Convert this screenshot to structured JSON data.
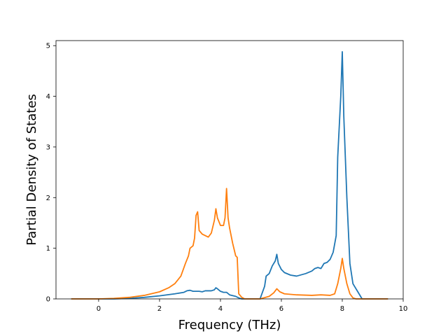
{
  "chart_data": {
    "type": "line",
    "title": "",
    "xlabel": "Frequency (THz)",
    "ylabel": "Partial Density of States",
    "xlim": [
      -1.4,
      10
    ],
    "ylim": [
      0,
      5.1
    ],
    "x_ticks": [
      0,
      2,
      4,
      6,
      8,
      10
    ],
    "y_ticks": [
      0,
      1,
      2,
      3,
      4,
      5
    ],
    "grid": false,
    "legend": "none",
    "series": [
      {
        "color": "#1f77b4",
        "points": [
          [
            -0.9,
            0
          ],
          [
            0.5,
            0
          ],
          [
            1.0,
            0.01
          ],
          [
            1.5,
            0.03
          ],
          [
            2.0,
            0.06
          ],
          [
            2.5,
            0.1
          ],
          [
            2.8,
            0.13
          ],
          [
            2.9,
            0.16
          ],
          [
            3.0,
            0.17
          ],
          [
            3.1,
            0.15
          ],
          [
            3.3,
            0.15
          ],
          [
            3.4,
            0.14
          ],
          [
            3.5,
            0.16
          ],
          [
            3.7,
            0.16
          ],
          [
            3.8,
            0.18
          ],
          [
            3.85,
            0.22
          ],
          [
            3.9,
            0.2
          ],
          [
            4.0,
            0.15
          ],
          [
            4.1,
            0.13
          ],
          [
            4.2,
            0.13
          ],
          [
            4.3,
            0.08
          ],
          [
            4.5,
            0.05
          ],
          [
            4.6,
            0.02
          ],
          [
            4.7,
            0
          ],
          [
            5.3,
            0
          ],
          [
            5.45,
            0.25
          ],
          [
            5.5,
            0.45
          ],
          [
            5.6,
            0.5
          ],
          [
            5.7,
            0.65
          ],
          [
            5.8,
            0.75
          ],
          [
            5.85,
            0.88
          ],
          [
            5.9,
            0.7
          ],
          [
            6.0,
            0.58
          ],
          [
            6.1,
            0.52
          ],
          [
            6.3,
            0.47
          ],
          [
            6.5,
            0.45
          ],
          [
            6.8,
            0.5
          ],
          [
            7.0,
            0.55
          ],
          [
            7.1,
            0.6
          ],
          [
            7.2,
            0.62
          ],
          [
            7.3,
            0.6
          ],
          [
            7.4,
            0.7
          ],
          [
            7.5,
            0.72
          ],
          [
            7.6,
            0.78
          ],
          [
            7.7,
            0.92
          ],
          [
            7.8,
            1.25
          ],
          [
            7.85,
            2.8
          ],
          [
            7.95,
            4.0
          ],
          [
            8.0,
            4.88
          ],
          [
            8.05,
            3.6
          ],
          [
            8.15,
            2.0
          ],
          [
            8.25,
            0.7
          ],
          [
            8.35,
            0.3
          ],
          [
            8.5,
            0.15
          ],
          [
            8.6,
            0.05
          ],
          [
            8.65,
            0
          ],
          [
            9.5,
            0
          ]
        ]
      },
      {
        "color": "#ff7f0e",
        "points": [
          [
            -0.9,
            0
          ],
          [
            0.0,
            0
          ],
          [
            0.5,
            0.01
          ],
          [
            1.0,
            0.03
          ],
          [
            1.5,
            0.07
          ],
          [
            2.0,
            0.14
          ],
          [
            2.3,
            0.22
          ],
          [
            2.5,
            0.3
          ],
          [
            2.7,
            0.45
          ],
          [
            2.85,
            0.7
          ],
          [
            2.95,
            0.85
          ],
          [
            3.0,
            1.0
          ],
          [
            3.1,
            1.05
          ],
          [
            3.15,
            1.2
          ],
          [
            3.2,
            1.65
          ],
          [
            3.25,
            1.72
          ],
          [
            3.3,
            1.35
          ],
          [
            3.4,
            1.28
          ],
          [
            3.5,
            1.25
          ],
          [
            3.6,
            1.22
          ],
          [
            3.7,
            1.3
          ],
          [
            3.8,
            1.55
          ],
          [
            3.85,
            1.78
          ],
          [
            3.9,
            1.6
          ],
          [
            4.0,
            1.45
          ],
          [
            4.1,
            1.45
          ],
          [
            4.15,
            1.6
          ],
          [
            4.2,
            2.18
          ],
          [
            4.25,
            1.6
          ],
          [
            4.3,
            1.4
          ],
          [
            4.4,
            1.1
          ],
          [
            4.5,
            0.85
          ],
          [
            4.55,
            0.82
          ],
          [
            4.6,
            0.1
          ],
          [
            4.7,
            0.03
          ],
          [
            4.8,
            0
          ],
          [
            5.3,
            0
          ],
          [
            5.6,
            0.05
          ],
          [
            5.75,
            0.12
          ],
          [
            5.85,
            0.2
          ],
          [
            5.95,
            0.14
          ],
          [
            6.1,
            0.1
          ],
          [
            6.5,
            0.08
          ],
          [
            7.0,
            0.07
          ],
          [
            7.3,
            0.08
          ],
          [
            7.6,
            0.07
          ],
          [
            7.75,
            0.1
          ],
          [
            7.85,
            0.3
          ],
          [
            7.95,
            0.6
          ],
          [
            8.0,
            0.8
          ],
          [
            8.05,
            0.6
          ],
          [
            8.15,
            0.3
          ],
          [
            8.25,
            0.1
          ],
          [
            8.35,
            0.02
          ],
          [
            8.45,
            0
          ],
          [
            9.5,
            0
          ]
        ]
      }
    ]
  }
}
